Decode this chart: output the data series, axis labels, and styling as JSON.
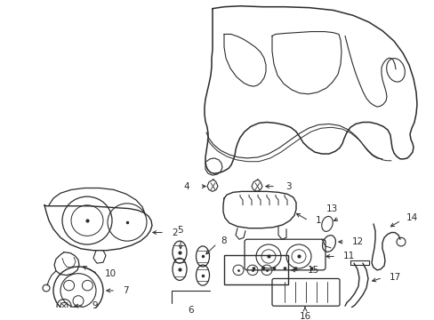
{
  "bg_color": "#ffffff",
  "line_color": "#2a2a2a",
  "lw": 0.9,
  "figsize": [
    4.89,
    3.6
  ],
  "dpi": 100,
  "xlim": [
    0,
    489
  ],
  "ylim": [
    0,
    360
  ]
}
